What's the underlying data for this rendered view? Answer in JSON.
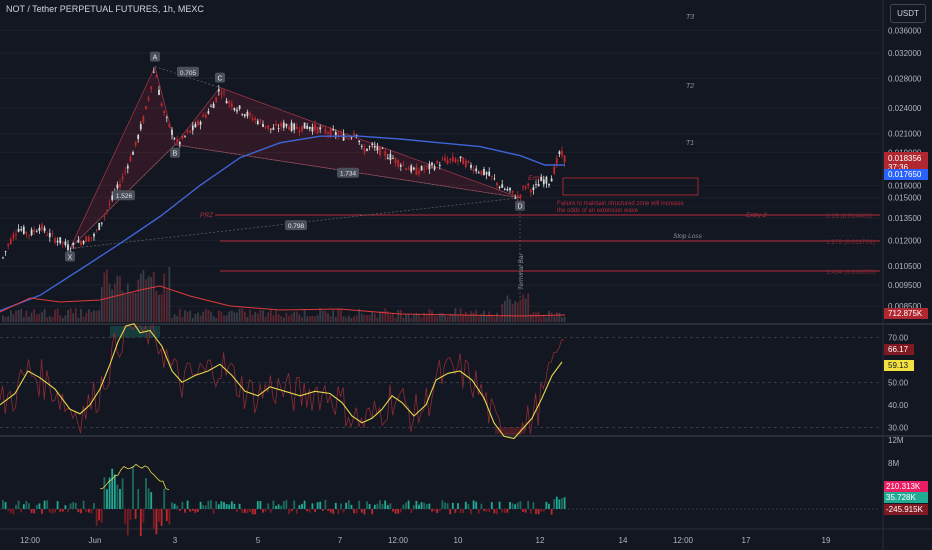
{
  "header": {
    "title": "NOT / Tether PERPETUAL FUTURES, 1h, MEXC",
    "currency": "USDT"
  },
  "chart_data": {
    "type": "candlestick",
    "symbol": "NOT / Tether PERPETUAL FUTURES",
    "interval": "1h",
    "exchange": "MEXC",
    "x_labels": [
      "12:00",
      "Jun",
      "3",
      "5",
      "7",
      "12:00",
      "10",
      "12",
      "14",
      "12:00",
      "17",
      "19"
    ],
    "price_axis": {
      "ticks": [
        "0.036000",
        "0.032000",
        "0.028000",
        "0.024000",
        "0.021000",
        "0.019000",
        "0.016000",
        "0.015000",
        "0.013500",
        "0.012000",
        "0.010500",
        "0.009500",
        "0.008500"
      ],
      "scale": "log"
    },
    "price_path": [
      [
        0,
        0.0105
      ],
      [
        8,
        0.0117
      ],
      [
        18,
        0.0128
      ],
      [
        30,
        0.0124
      ],
      [
        40,
        0.0129
      ],
      [
        52,
        0.0122
      ],
      [
        62,
        0.0119
      ],
      [
        70,
        0.0115
      ],
      [
        82,
        0.012
      ],
      [
        95,
        0.0123
      ],
      [
        110,
        0.0145
      ],
      [
        122,
        0.0165
      ],
      [
        135,
        0.0195
      ],
      [
        145,
        0.0232
      ],
      [
        150,
        0.0262
      ],
      [
        155,
        0.0298
      ],
      [
        160,
        0.0252
      ],
      [
        166,
        0.0226
      ],
      [
        172,
        0.0212
      ],
      [
        178,
        0.0198
      ],
      [
        186,
        0.0208
      ],
      [
        196,
        0.0218
      ],
      [
        208,
        0.0235
      ],
      [
        215,
        0.0248
      ],
      [
        220,
        0.0267
      ],
      [
        228,
        0.0248
      ],
      [
        240,
        0.0238
      ],
      [
        252,
        0.0228
      ],
      [
        262,
        0.0222
      ],
      [
        272,
        0.0214
      ],
      [
        285,
        0.022
      ],
      [
        296,
        0.0216
      ],
      [
        308,
        0.0218
      ],
      [
        322,
        0.0214
      ],
      [
        335,
        0.021
      ],
      [
        348,
        0.0205
      ],
      [
        356,
        0.0214
      ],
      [
        362,
        0.0192
      ],
      [
        372,
        0.0196
      ],
      [
        385,
        0.0189
      ],
      [
        400,
        0.018
      ],
      [
        415,
        0.0172
      ],
      [
        430,
        0.0176
      ],
      [
        445,
        0.0182
      ],
      [
        460,
        0.0183
      ],
      [
        475,
        0.0175
      ],
      [
        490,
        0.0168
      ],
      [
        502,
        0.0158
      ],
      [
        510,
        0.0155
      ],
      [
        518,
        0.015
      ],
      [
        526,
        0.016
      ],
      [
        534,
        0.0156
      ],
      [
        542,
        0.0165
      ],
      [
        550,
        0.0163
      ],
      [
        556,
        0.0178
      ],
      [
        560,
        0.019
      ],
      [
        565,
        0.0184
      ]
    ],
    "ma_path": [
      [
        0,
        0.0083
      ],
      [
        40,
        0.009
      ],
      [
        80,
        0.0103
      ],
      [
        120,
        0.0118
      ],
      [
        160,
        0.0136
      ],
      [
        200,
        0.016
      ],
      [
        240,
        0.0185
      ],
      [
        280,
        0.02
      ],
      [
        320,
        0.0207
      ],
      [
        360,
        0.0207
      ],
      [
        400,
        0.0204
      ],
      [
        440,
        0.02
      ],
      [
        480,
        0.0196
      ],
      [
        520,
        0.0187
      ],
      [
        545,
        0.0178
      ],
      [
        565,
        0.0178
      ]
    ],
    "price_labels": [
      {
        "text": "0.018356",
        "sub": "37:36",
        "color": "#b0272f"
      },
      {
        "text": "0.017650",
        "color": "#2962ff"
      }
    ],
    "pattern": {
      "points": [
        {
          "label": "X",
          "t": 70,
          "p": 0.0115
        },
        {
          "label": "A",
          "t": 155,
          "p": 0.0298
        },
        {
          "label": "B",
          "t": 175,
          "p": 0.0198
        },
        {
          "label": "C",
          "t": 220,
          "p": 0.0267
        },
        {
          "label": "D",
          "t": 520,
          "p": 0.015
        }
      ],
      "ratios": [
        {
          "text": "0.705",
          "t": 188,
          "p": 0.029
        },
        {
          "text": "1.526",
          "t": 124,
          "p": 0.0152
        },
        {
          "text": "1.734",
          "t": 348,
          "p": 0.0171
        },
        {
          "text": "0.798",
          "t": 296,
          "p": 0.013
        }
      ]
    },
    "annotations": {
      "targets": [
        "T3",
        "T2",
        "T1"
      ],
      "entry_label": "Entry",
      "entry2_label": "Entry 2",
      "prz_label": "PRZ",
      "stop_loss_label": "Stop Loss",
      "terminal_bar_label": "Terminal Bar",
      "note": "Failure to maintain structured zone will increase the odds of an extension wave",
      "level_labels": [
        "1.13 (0.014401)",
        "1.272 (0.011701)",
        "1.414 (0.010000)"
      ]
    },
    "volume_label": "712.875K",
    "rsi": {
      "ticks": [
        "70.00",
        "50.00",
        "40.00",
        "30.00"
      ],
      "value_red": "66.17",
      "value_yellow": "59.13",
      "upper": 70,
      "lower": 30,
      "yellow_path": [
        [
          0,
          40
        ],
        [
          15,
          45
        ],
        [
          28,
          55
        ],
        [
          40,
          52
        ],
        [
          55,
          47
        ],
        [
          70,
          38
        ],
        [
          80,
          36
        ],
        [
          90,
          40
        ],
        [
          100,
          47
        ],
        [
          110,
          58
        ],
        [
          118,
          68
        ],
        [
          126,
          75
        ],
        [
          134,
          76
        ],
        [
          140,
          72
        ],
        [
          150,
          73
        ],
        [
          162,
          66
        ],
        [
          172,
          55
        ],
        [
          182,
          50
        ],
        [
          195,
          53
        ],
        [
          208,
          55
        ],
        [
          220,
          58
        ],
        [
          232,
          53
        ],
        [
          245,
          46
        ],
        [
          258,
          44
        ],
        [
          270,
          48
        ],
        [
          285,
          46
        ],
        [
          300,
          44
        ],
        [
          315,
          46
        ],
        [
          330,
          45
        ],
        [
          342,
          41
        ],
        [
          352,
          35
        ],
        [
          362,
          32
        ],
        [
          372,
          34
        ],
        [
          382,
          38
        ],
        [
          392,
          44
        ],
        [
          402,
          41
        ],
        [
          414,
          35
        ],
        [
          426,
          40
        ],
        [
          436,
          51
        ],
        [
          448,
          54
        ],
        [
          460,
          55
        ],
        [
          472,
          51
        ],
        [
          484,
          43
        ],
        [
          494,
          32
        ],
        [
          504,
          26
        ],
        [
          514,
          25
        ],
        [
          522,
          29
        ],
        [
          532,
          34
        ],
        [
          542,
          43
        ],
        [
          552,
          53
        ],
        [
          562,
          59
        ]
      ]
    },
    "histogram": {
      "label_tick": "12M",
      "label_tick2": "8M",
      "values": [
        "210.313K",
        "35.728K",
        "-245.915K"
      ],
      "value_colors": [
        "#e91e63",
        "#22ab94",
        "#801922"
      ]
    }
  }
}
